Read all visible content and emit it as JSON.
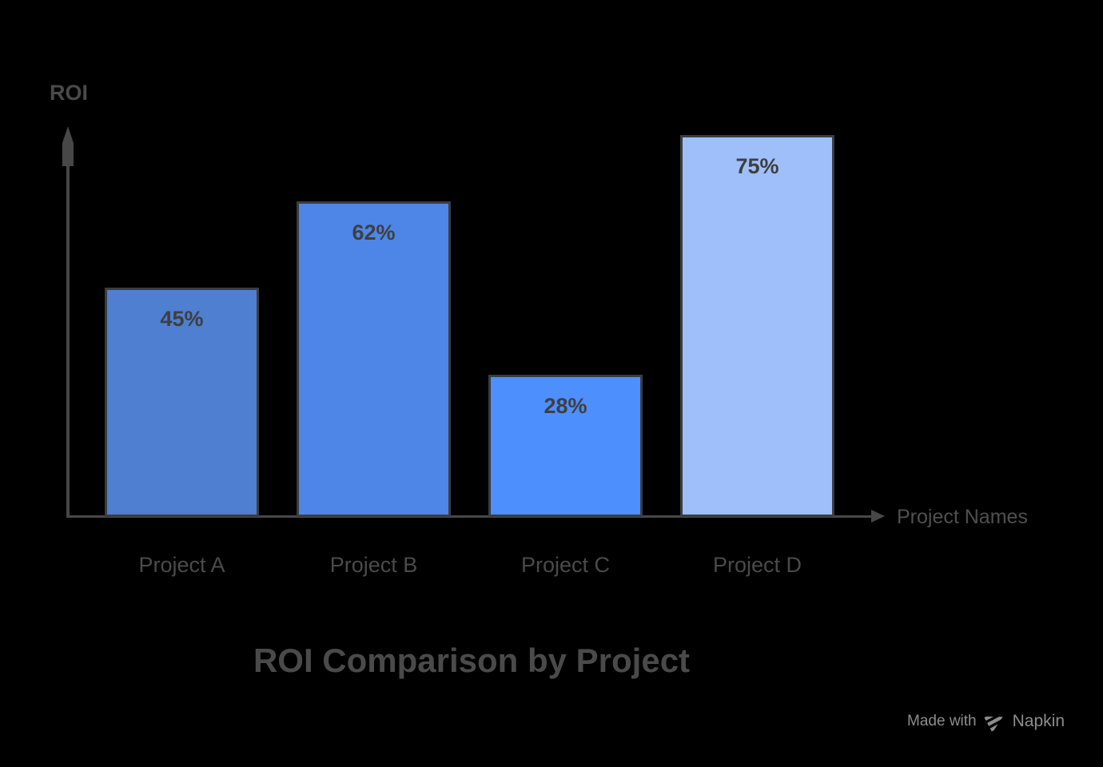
{
  "chart_data": {
    "type": "bar",
    "title": "ROI Comparison by Project",
    "ylabel": "ROI",
    "xlabel": "Project Names",
    "categories": [
      "Project A",
      "Project B",
      "Project C",
      "Project D"
    ],
    "values": [
      45,
      62,
      28,
      75
    ],
    "value_labels": [
      "45%",
      "62%",
      "28%",
      "75%"
    ],
    "series": [
      {
        "name": "ROI",
        "values": [
          45,
          62,
          28,
          75
        ]
      }
    ],
    "bar_colors": [
      "#4E7FD0",
      "#4E86E8",
      "#4D8FFC",
      "#9EBFF9"
    ],
    "bar_border_color": "#3B3D40",
    "axis_color": "#474747",
    "value_label_color": "#3F3F3F",
    "ylim": [
      0,
      80
    ],
    "grid": false,
    "legend": false
  },
  "footer": {
    "made_with_label": "Made with",
    "brand_label": "Napkin",
    "logo_icon": "napkin-logo",
    "text_color": "#8D8D8D"
  },
  "canvas": {
    "background_color": "#000000"
  }
}
